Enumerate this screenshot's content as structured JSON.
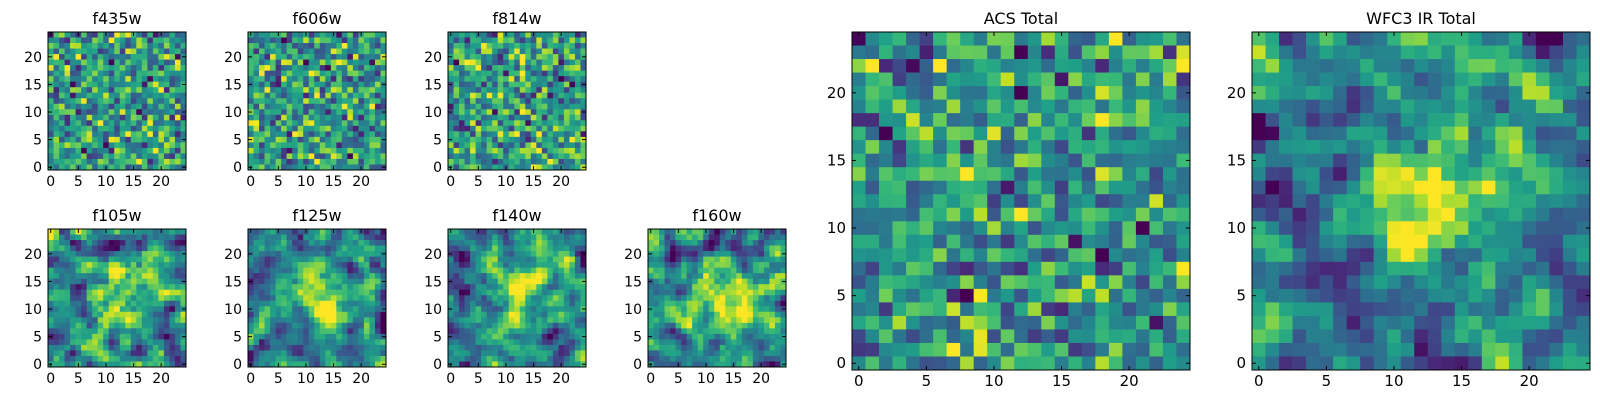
{
  "chart_data": [
    {
      "type": "heatmap",
      "title": "f435w",
      "xticks": [
        0,
        5,
        10,
        15,
        20
      ],
      "yticks": [
        0,
        5,
        10,
        15,
        20
      ],
      "xlim": [
        -0.5,
        24.5
      ],
      "ylim": [
        -0.5,
        24.5
      ],
      "grid": false,
      "colormap": "viridis",
      "n_pixels": 25,
      "pattern": "noise"
    },
    {
      "type": "heatmap",
      "title": "f606w",
      "xticks": [
        0,
        5,
        10,
        15,
        20
      ],
      "yticks": [
        0,
        5,
        10,
        15,
        20
      ],
      "xlim": [
        -0.5,
        24.5
      ],
      "ylim": [
        -0.5,
        24.5
      ],
      "grid": false,
      "colormap": "viridis",
      "n_pixels": 25,
      "pattern": "noise"
    },
    {
      "type": "heatmap",
      "title": "f814w",
      "xticks": [
        0,
        5,
        10,
        15,
        20
      ],
      "yticks": [
        0,
        5,
        10,
        15,
        20
      ],
      "xlim": [
        -0.5,
        24.5
      ],
      "ylim": [
        -0.5,
        24.5
      ],
      "grid": false,
      "colormap": "viridis",
      "n_pixels": 25,
      "pattern": "noise"
    },
    {
      "type": "heatmap",
      "title": "f105w",
      "xticks": [
        0,
        5,
        10,
        15,
        20
      ],
      "yticks": [
        0,
        5,
        10,
        15,
        20
      ],
      "xlim": [
        -0.5,
        24.5
      ],
      "ylim": [
        -0.5,
        24.5
      ],
      "grid": false,
      "colormap": "viridis",
      "n_pixels": 25,
      "pattern": "smooth"
    },
    {
      "type": "heatmap",
      "title": "f125w",
      "xticks": [
        0,
        5,
        10,
        15,
        20
      ],
      "yticks": [
        0,
        5,
        10,
        15,
        20
      ],
      "xlim": [
        -0.5,
        24.5
      ],
      "ylim": [
        -0.5,
        24.5
      ],
      "grid": false,
      "colormap": "viridis",
      "n_pixels": 25,
      "pattern": "smooth"
    },
    {
      "type": "heatmap",
      "title": "f140w",
      "xticks": [
        0,
        5,
        10,
        15,
        20
      ],
      "yticks": [
        0,
        5,
        10,
        15,
        20
      ],
      "xlim": [
        -0.5,
        24.5
      ],
      "ylim": [
        -0.5,
        24.5
      ],
      "grid": false,
      "colormap": "viridis",
      "n_pixels": 25,
      "pattern": "smooth"
    },
    {
      "type": "heatmap",
      "title": "f160w",
      "xticks": [
        0,
        5,
        10,
        15,
        20
      ],
      "yticks": [
        0,
        5,
        10,
        15,
        20
      ],
      "xlim": [
        -0.5,
        24.5
      ],
      "ylim": [
        -0.5,
        24.5
      ],
      "grid": false,
      "colormap": "viridis",
      "n_pixels": 25,
      "pattern": "smooth"
    },
    {
      "type": "heatmap",
      "title": "ACS Total",
      "xticks": [
        0,
        5,
        10,
        15,
        20
      ],
      "yticks": [
        0,
        5,
        10,
        15,
        20
      ],
      "xlim": [
        -0.5,
        24.5
      ],
      "ylim": [
        -0.5,
        24.5
      ],
      "grid": false,
      "colormap": "viridis",
      "n_pixels": 25,
      "pattern": "noise"
    },
    {
      "type": "heatmap",
      "title": "WFC3 IR Total",
      "xticks": [
        0,
        5,
        10,
        15,
        20
      ],
      "yticks": [
        0,
        5,
        10,
        15,
        20
      ],
      "xlim": [
        -0.5,
        24.5
      ],
      "ylim": [
        -0.5,
        24.5
      ],
      "grid": false,
      "colormap": "viridis",
      "n_pixels": 25,
      "pattern": "smooth"
    }
  ]
}
